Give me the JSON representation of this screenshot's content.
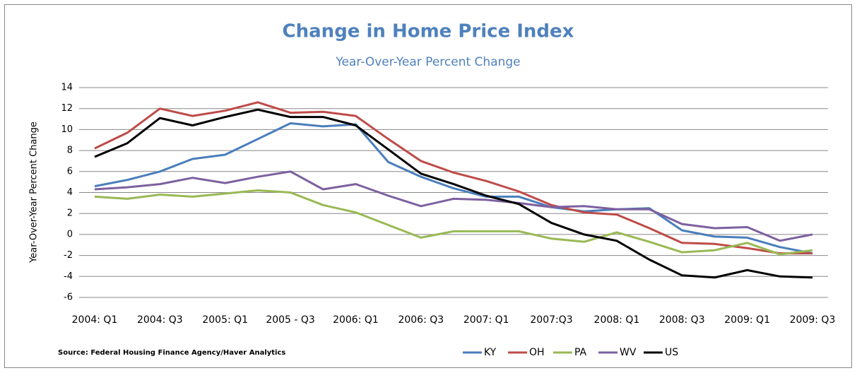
{
  "chart_data": {
    "type": "line",
    "title": "Change in Home Price Index",
    "subtitle": "Year-Over-Year Percent Change",
    "y_label": "Year-Over-Year Percent Change",
    "source": "Source: Federal Housing Finance Agency/Haver Analytics",
    "categories": [
      "2004: Q1",
      null,
      "2004: Q3",
      null,
      "2005: Q1",
      null,
      "2005 - Q3",
      null,
      "2006: Q1",
      null,
      "2006: Q3",
      null,
      "2007: Q1",
      null,
      "2007:Q3",
      null,
      "2008: Q1",
      null,
      "2008: Q3",
      null,
      "2009: Q1",
      null,
      "2009: Q3"
    ],
    "series": [
      {
        "name": "KY",
        "color": "#4a7ebb",
        "values": [
          4.6,
          5.2,
          6.0,
          7.2,
          7.6,
          9.1,
          10.6,
          10.3,
          10.5,
          6.9,
          5.5,
          4.4,
          3.6,
          3.6,
          2.6,
          2.2,
          2.4,
          2.5,
          0.4,
          -0.2,
          -0.3,
          -1.2,
          -1.8
        ]
      },
      {
        "name": "OH",
        "color": "#be4b48",
        "values": [
          8.2,
          9.7,
          12.0,
          11.3,
          11.8,
          12.6,
          11.6,
          11.7,
          11.3,
          9.1,
          7.0,
          5.9,
          5.1,
          4.1,
          2.8,
          2.1,
          1.9,
          0.6,
          -0.8,
          -0.9,
          -1.3,
          -1.8,
          -1.8
        ]
      },
      {
        "name": "PA",
        "color": "#98b954",
        "values": [
          3.6,
          3.4,
          3.8,
          3.6,
          3.9,
          4.2,
          4.0,
          2.8,
          2.1,
          0.9,
          -0.3,
          0.3,
          0.3,
          0.3,
          -0.4,
          -0.7,
          0.2,
          -0.7,
          -1.7,
          -1.5,
          -0.8,
          -1.9,
          -1.5
        ]
      },
      {
        "name": "WV",
        "color": "#7d60a0",
        "values": [
          4.3,
          4.5,
          4.8,
          5.4,
          4.9,
          5.5,
          6.0,
          4.3,
          4.8,
          3.7,
          2.7,
          3.4,
          3.3,
          3.0,
          2.6,
          2.7,
          2.4,
          2.4,
          1.0,
          0.6,
          0.7,
          -0.6,
          0.0
        ]
      },
      {
        "name": "US",
        "color": "#000000",
        "values": [
          7.4,
          8.7,
          11.1,
          10.4,
          11.2,
          11.9,
          11.2,
          11.2,
          10.4,
          8.1,
          5.8,
          4.8,
          3.7,
          2.9,
          1.1,
          0.0,
          -0.6,
          -2.4,
          -3.9,
          -4.1,
          -3.4,
          -4.0,
          -4.1
        ]
      }
    ],
    "ylim": [
      -6,
      14
    ],
    "yticks": [
      -6,
      -4,
      -2,
      0,
      2,
      4,
      6,
      8,
      10,
      12,
      14
    ],
    "grid": true
  }
}
